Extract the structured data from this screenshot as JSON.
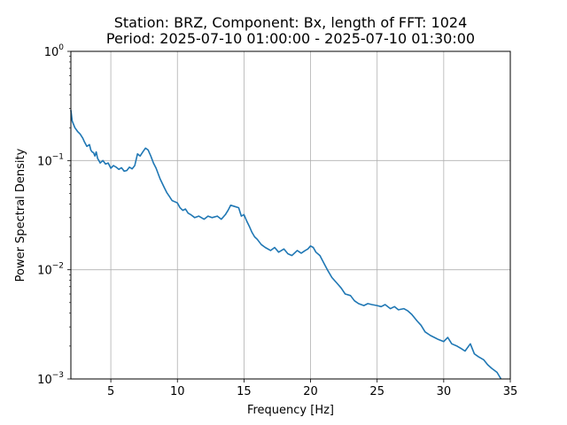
{
  "chart_data": {
    "type": "line",
    "title": "Station: BRZ, Component: Bx, length of FFT: 1024",
    "subtitle": "Period: 2025-07-10 01:00:00 - 2025-07-10 01:30:00",
    "xlabel": "Frequency [Hz]",
    "ylabel": "Power Spectral Density",
    "xlim": [
      2,
      35
    ],
    "ylim": [
      0.001,
      1
    ],
    "yscale": "log",
    "grid": true,
    "x_ticks": [
      5,
      10,
      15,
      20,
      25,
      30,
      35
    ],
    "x_tick_labels": [
      "5",
      "10",
      "15",
      "20",
      "25",
      "30",
      "35"
    ],
    "y_ticks": [
      0.001,
      0.01,
      0.1,
      1
    ],
    "y_tick_labels": [
      {
        "base": "10",
        "exp": "−3"
      },
      {
        "base": "10",
        "exp": "−2"
      },
      {
        "base": "10",
        "exp": "−1"
      },
      {
        "base": "10",
        "exp": "0"
      }
    ],
    "series": [
      {
        "color": "#1f77b4",
        "x": [
          2.0,
          2.1,
          2.3,
          2.5,
          2.7,
          2.9,
          3.0,
          3.2,
          3.4,
          3.5,
          3.6,
          3.7,
          3.8,
          3.9,
          4.0,
          4.2,
          4.4,
          4.6,
          4.8,
          5.0,
          5.2,
          5.4,
          5.6,
          5.8,
          6.0,
          6.2,
          6.4,
          6.6,
          6.8,
          7.0,
          7.2,
          7.4,
          7.6,
          7.8,
          8.0,
          8.2,
          8.4,
          8.7,
          9.0,
          9.2,
          9.4,
          9.6,
          9.8,
          10.0,
          10.2,
          10.4,
          10.6,
          10.8,
          11.0,
          11.3,
          11.6,
          12.0,
          12.3,
          12.6,
          13.0,
          13.3,
          13.6,
          13.8,
          14.0,
          14.3,
          14.6,
          14.8,
          15.0,
          15.2,
          15.4,
          15.6,
          15.8,
          16.0,
          16.3,
          16.6,
          17.0,
          17.3,
          17.6,
          18.0,
          18.3,
          18.6,
          19.0,
          19.3,
          19.6,
          19.8,
          20.0,
          20.2,
          20.4,
          20.7,
          21.0,
          21.3,
          21.6,
          22.0,
          22.3,
          22.6,
          23.0,
          23.3,
          23.6,
          24.0,
          24.3,
          24.6,
          25.0,
          25.3,
          25.6,
          26.0,
          26.3,
          26.6,
          27.0,
          27.3,
          27.6,
          28.0,
          28.3,
          28.6,
          29.0,
          29.3,
          29.6,
          30.0,
          30.3,
          30.6,
          31.0,
          31.3,
          31.6,
          32.0,
          32.3,
          32.6,
          33.0,
          33.3,
          33.6,
          34.0,
          34.3
        ],
        "y": [
          0.29,
          0.23,
          0.2,
          0.185,
          0.175,
          0.16,
          0.15,
          0.135,
          0.14,
          0.125,
          0.12,
          0.118,
          0.11,
          0.12,
          0.105,
          0.095,
          0.1,
          0.093,
          0.095,
          0.085,
          0.09,
          0.087,
          0.083,
          0.086,
          0.08,
          0.081,
          0.087,
          0.084,
          0.09,
          0.115,
          0.11,
          0.12,
          0.13,
          0.125,
          0.11,
          0.095,
          0.085,
          0.068,
          0.057,
          0.051,
          0.047,
          0.043,
          0.042,
          0.041,
          0.037,
          0.035,
          0.036,
          0.033,
          0.032,
          0.03,
          0.031,
          0.029,
          0.031,
          0.03,
          0.031,
          0.029,
          0.032,
          0.035,
          0.039,
          0.038,
          0.037,
          0.031,
          0.032,
          0.028,
          0.025,
          0.022,
          0.02,
          0.019,
          0.017,
          0.016,
          0.015,
          0.016,
          0.0145,
          0.0155,
          0.014,
          0.0135,
          0.015,
          0.0142,
          0.015,
          0.0155,
          0.0165,
          0.016,
          0.0145,
          0.0135,
          0.0115,
          0.0098,
          0.0085,
          0.0075,
          0.0068,
          0.006,
          0.0058,
          0.0052,
          0.0049,
          0.0047,
          0.0049,
          0.0048,
          0.0047,
          0.0046,
          0.0048,
          0.0044,
          0.0046,
          0.0043,
          0.0044,
          0.0042,
          0.0039,
          0.0034,
          0.0031,
          0.0027,
          0.0025,
          0.0024,
          0.0023,
          0.0022,
          0.0024,
          0.0021,
          0.002,
          0.0019,
          0.0018,
          0.0021,
          0.0017,
          0.0016,
          0.0015,
          0.00135,
          0.00125,
          0.00115,
          0.001
        ]
      }
    ]
  }
}
